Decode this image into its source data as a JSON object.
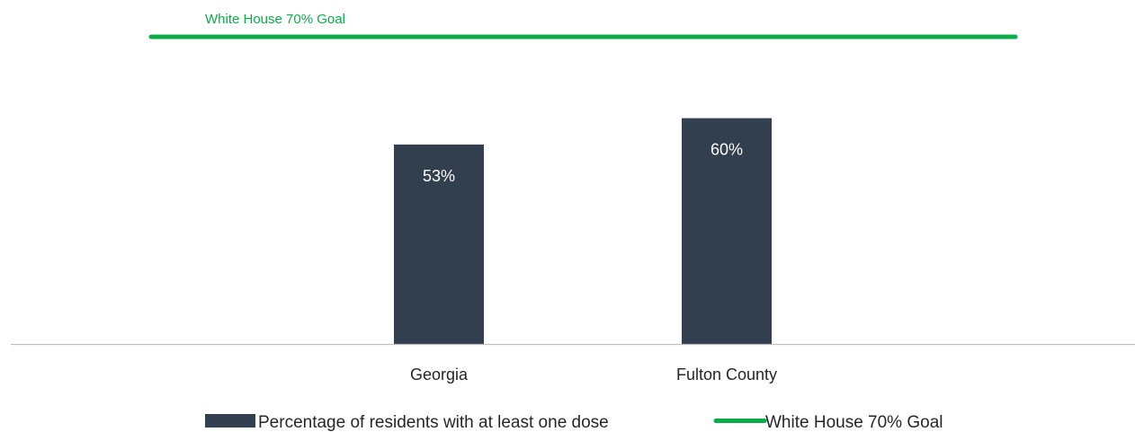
{
  "chart_data": {
    "type": "bar",
    "categories": [
      "Georgia",
      "Fulton County"
    ],
    "series": [
      {
        "name": "Percentage of residents with at least one dose",
        "values": [
          53,
          60
        ],
        "value_labels": [
          "53%",
          "60%"
        ]
      }
    ],
    "reference_line": {
      "name": "White House 70% Goal",
      "label": "White House 70% Goal",
      "value": 70
    },
    "ylim": [
      0,
      72
    ],
    "grid": false,
    "legend": "bottom",
    "colors": {
      "bar": "#323f4f",
      "goal": "#0aad4a",
      "axis": "#bfbfbf",
      "text": "#262626",
      "bar_label": "#ffffff"
    }
  }
}
